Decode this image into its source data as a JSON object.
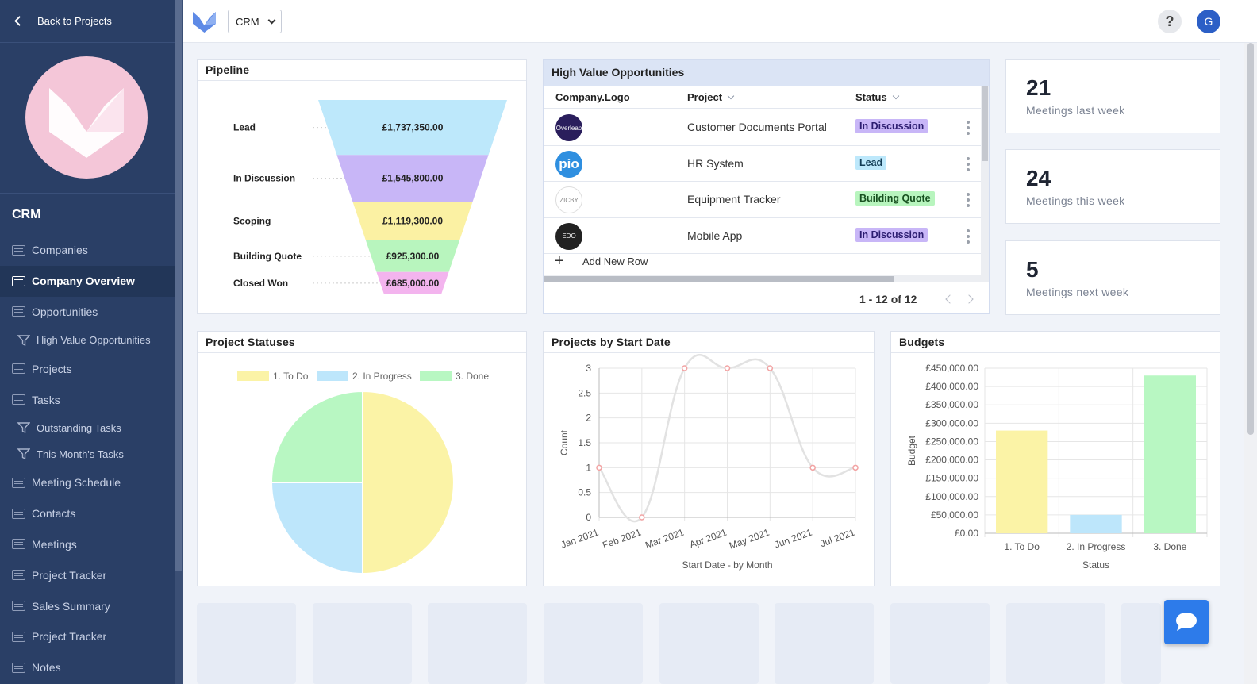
{
  "sidebar": {
    "back_label": "Back to Projects",
    "section_title": "CRM",
    "items": [
      {
        "label": "Companies",
        "type": "table"
      },
      {
        "label": "Company Overview",
        "type": "dashboard",
        "active": true
      },
      {
        "label": "Opportunities",
        "type": "table"
      },
      {
        "label": "High Value Opportunities",
        "type": "filter"
      },
      {
        "label": "Projects",
        "type": "table"
      },
      {
        "label": "Tasks",
        "type": "table"
      },
      {
        "label": "Outstanding Tasks",
        "type": "filter"
      },
      {
        "label": "This Month's Tasks",
        "type": "filter"
      },
      {
        "label": "Meeting Schedule",
        "type": "calendar"
      },
      {
        "label": "Contacts",
        "type": "table"
      },
      {
        "label": "Meetings",
        "type": "table"
      },
      {
        "label": "Project Tracker",
        "type": "calendar"
      },
      {
        "label": "Sales Summary",
        "type": "dashboard"
      },
      {
        "label": "Project Tracker",
        "type": "form"
      },
      {
        "label": "Notes",
        "type": "table"
      }
    ]
  },
  "topbar": {
    "app_name": "CRM",
    "help_label": "?",
    "avatar_initial": "G"
  },
  "pipeline": {
    "title": "Pipeline",
    "chart_data": {
      "type": "funnel",
      "stages": [
        {
          "label": "Lead",
          "value": "£1,737,350.00",
          "amount": 1737350,
          "color": "#bde8fb"
        },
        {
          "label": "In Discussion",
          "value": "£1,545,800.00",
          "amount": 1545800,
          "color": "#c8b6f7"
        },
        {
          "label": "Scoping",
          "value": "£1,119,300.00",
          "amount": 1119300,
          "color": "#fbf1a3"
        },
        {
          "label": "Building Quote",
          "value": "£925,300.00",
          "amount": 925300,
          "color": "#b8f5be"
        },
        {
          "label": "Closed Won",
          "value": "£685,000.00",
          "amount": 685000,
          "color": "#f3b4ee"
        }
      ]
    }
  },
  "opportunities": {
    "title": "High Value Opportunities",
    "columns": [
      "Company.Logo",
      "Project",
      "Status"
    ],
    "rows": [
      {
        "logo_text": "Overleap",
        "logo_bg": "#2a1e5c",
        "project": "Customer Documents Portal",
        "status": "In Discussion"
      },
      {
        "logo_text": "pio",
        "logo_bg": "#2f8fe0",
        "project": "HR System",
        "status": "Lead"
      },
      {
        "logo_text": "ZICBY",
        "logo_bg": "#ffffff",
        "project": "Equipment Tracker",
        "status": "Building Quote"
      },
      {
        "logo_text": "EDO",
        "logo_bg": "#222222",
        "project": "Mobile App",
        "status": "In Discussion"
      }
    ],
    "status_colors": {
      "In Discussion": {
        "bg": "#c8b6f7",
        "fg": "#2c1d70"
      },
      "Lead": {
        "bg": "#bde8fb",
        "fg": "#123c55"
      },
      "Building Quote": {
        "bg": "#b8f5be",
        "fg": "#17501f"
      }
    },
    "add_row_label": "Add New Row",
    "pagination": "1 - 12 of 12"
  },
  "stats": [
    {
      "value": "21",
      "label": "Meetings last week"
    },
    {
      "value": "24",
      "label": "Meetings this week"
    },
    {
      "value": "5",
      "label": "Meetings next week"
    }
  ],
  "project_statuses": {
    "title": "Project Statuses",
    "chart_data": {
      "type": "pie",
      "labels": [
        "1. To Do",
        "2. In Progress",
        "3. Done"
      ],
      "values": [
        50,
        25,
        25
      ],
      "colors": [
        "#fbf3a6",
        "#bde6fb",
        "#b8f7c2"
      ]
    }
  },
  "projects_by_start": {
    "title": "Projects by Start Date",
    "chart_data": {
      "type": "line",
      "x": [
        "Jan 2021",
        "Feb 2021",
        "Mar 2021",
        "Apr 2021",
        "May 2021",
        "Jun 2021",
        "Jul 2021"
      ],
      "values": [
        1,
        0,
        3,
        3,
        3,
        1,
        1
      ],
      "ylim": [
        0,
        3
      ],
      "yticks": [
        "0",
        "0.5",
        "1",
        "1.5",
        "2",
        "2.5",
        "3"
      ],
      "xlabel": "Start Date - by Month",
      "ylabel": "Count",
      "line_color": "#e2e2e2",
      "point_color": "#f2a3a3"
    }
  },
  "budgets": {
    "title": "Budgets",
    "chart_data": {
      "type": "bar",
      "categories": [
        "1. To Do",
        "2. In Progress",
        "3. Done"
      ],
      "values": [
        280000,
        50000,
        430000
      ],
      "colors": [
        "#fbf3a6",
        "#bde6fb",
        "#b8f7c2"
      ],
      "ylim": [
        0,
        450000
      ],
      "yticks": [
        "£0.00",
        "£50,000.00",
        "£100,000.00",
        "£150,000.00",
        "£200,000.00",
        "£250,000.00",
        "£300,000.00",
        "£350,000.00",
        "£400,000.00",
        "£450,000.00"
      ],
      "xlabel": "Status",
      "ylabel": "Budget"
    }
  }
}
